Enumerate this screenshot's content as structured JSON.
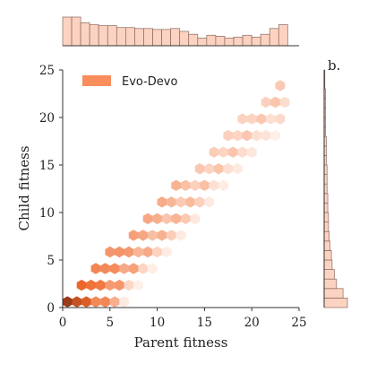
{
  "chart_data": {
    "type": "heatmap",
    "subtype": "hexbin-joint-plot",
    "xlabel": "Parent fitness",
    "ylabel": "Child fitness",
    "xlim": [
      0,
      25
    ],
    "ylim": [
      0,
      25
    ],
    "xticks": [
      "0",
      "5",
      "10",
      "15",
      "20",
      "25"
    ],
    "yticks": [
      "0",
      "5",
      "10",
      "15",
      "20",
      "25"
    ],
    "series": [
      {
        "name": "Evo-Devo",
        "color": "#f98d5c"
      }
    ],
    "panel_label": "b.",
    "legend_position": "top-left",
    "grid": false,
    "hexbin_grid": {
      "x_step": 1.0,
      "y_step": 1.75
    },
    "hexbin_density": [
      {
        "x": 0.5,
        "y": 0.7,
        "level": 1.0
      },
      {
        "x": 1.5,
        "y": 0.7,
        "level": 0.95
      },
      {
        "x": 1.0,
        "y": 1.5,
        "level": 0.75
      },
      {
        "x": 2.0,
        "y": 1.5,
        "level": 0.7
      },
      {
        "x": 3.0,
        "y": 0.7,
        "level": 0.6
      },
      {
        "x": 2.5,
        "y": 0.7,
        "level": 0.55
      },
      {
        "x": 3.0,
        "y": 2.5,
        "level": 0.55
      },
      {
        "x": 2.0,
        "y": 2.5,
        "level": 0.4
      },
      {
        "x": 4.0,
        "y": 3.5,
        "level": 0.5
      },
      {
        "x": 5.0,
        "y": 4.5,
        "level": 0.45
      },
      {
        "x": 6.0,
        "y": 5.5,
        "level": 0.42
      },
      {
        "x": 7.0,
        "y": 6.5,
        "level": 0.38
      },
      {
        "x": 8.0,
        "y": 7.5,
        "level": 0.34
      },
      {
        "x": 9.0,
        "y": 8.5,
        "level": 0.3
      },
      {
        "x": 10.0,
        "y": 9.5,
        "level": 0.3
      },
      {
        "x": 11.0,
        "y": 10.5,
        "level": 0.28
      },
      {
        "x": 12.0,
        "y": 11.5,
        "level": 0.26
      },
      {
        "x": 13.0,
        "y": 12.5,
        "level": 0.22
      },
      {
        "x": 14.0,
        "y": 14.0,
        "level": 0.2
      },
      {
        "x": 16.0,
        "y": 15.5,
        "level": 0.18
      },
      {
        "x": 18.0,
        "y": 17.5,
        "level": 0.17
      },
      {
        "x": 20.0,
        "y": 19.5,
        "level": 0.16
      },
      {
        "x": 22.0,
        "y": 21.5,
        "level": 0.15
      },
      {
        "x": 23.0,
        "y": 22.8,
        "level": 0.2
      }
    ],
    "marginal_x": {
      "bins": 25,
      "values": [
        30,
        30,
        24,
        22,
        21,
        21,
        19,
        19,
        18,
        18,
        17,
        17,
        18,
        15,
        12,
        8,
        11,
        10,
        8,
        9,
        11,
        9,
        12,
        18,
        22
      ]
    },
    "marginal_y": {
      "bins": 25,
      "values": [
        32,
        26,
        17,
        14,
        11,
        10,
        8,
        7,
        6,
        6,
        5,
        5,
        4,
        4,
        4,
        3,
        3,
        3,
        2,
        2,
        2,
        2,
        2,
        1,
        1
      ]
    }
  }
}
